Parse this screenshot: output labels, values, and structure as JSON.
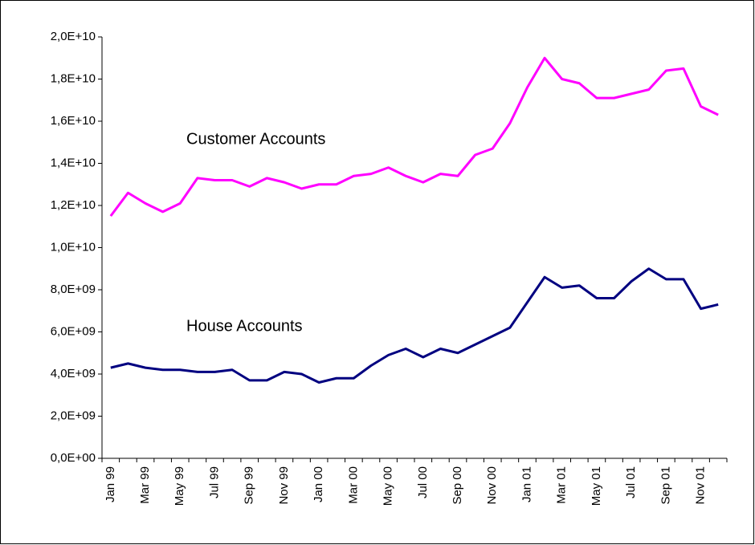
{
  "chart_data": {
    "type": "line",
    "categories": [
      "Jan 99",
      null,
      "Mar 99",
      null,
      "May 99",
      null,
      "Jul 99",
      null,
      "Sep 99",
      null,
      "Nov 99",
      null,
      "Jan 00",
      null,
      "Mar 00",
      null,
      "May 00",
      null,
      "Jul 00",
      null,
      "Sep 00",
      null,
      "Nov 00",
      null,
      "Jan 01",
      null,
      "Mar 01",
      null,
      "May 01",
      null,
      "Jul 01",
      null,
      "Sep 01",
      null,
      "Nov 01",
      null
    ],
    "series": [
      {
        "name": "Customer Accounts",
        "color": "#ff00ff",
        "values": [
          11500000000,
          12600000000,
          12100000000,
          11700000000,
          12100000000,
          13300000000,
          13200000000,
          13200000000,
          12900000000,
          13300000000,
          13100000000,
          12800000000,
          13000000000,
          13000000000,
          13400000000,
          13500000000,
          13800000000,
          13400000000,
          13100000000,
          13500000000,
          13400000000,
          14400000000,
          14700000000,
          15900000000,
          17600000000,
          19000000000,
          18000000000,
          17800000000,
          17100000000,
          17100000000,
          17300000000,
          17500000000,
          18400000000,
          18500000000,
          16700000000,
          16300000000
        ]
      },
      {
        "name": "House Accounts",
        "color": "#000080",
        "values": [
          4300000000,
          4500000000,
          4300000000,
          4200000000,
          4200000000,
          4100000000,
          4100000000,
          4200000000,
          3700000000,
          3700000000,
          4100000000,
          4000000000,
          3600000000,
          3800000000,
          3800000000,
          4400000000,
          4900000000,
          5200000000,
          4800000000,
          5200000000,
          5000000000,
          5400000000,
          5800000000,
          6200000000,
          7400000000,
          8600000000,
          8100000000,
          8200000000,
          7600000000,
          7600000000,
          8400000000,
          9000000000,
          8500000000,
          8500000000,
          7100000000,
          7300000000
        ]
      }
    ],
    "ylim": [
      0,
      20000000000
    ],
    "yticks": [
      {
        "value": 0,
        "label": "0,0E+00"
      },
      {
        "value": 2000000000,
        "label": "2,0E+09"
      },
      {
        "value": 4000000000,
        "label": "4,0E+09"
      },
      {
        "value": 6000000000,
        "label": "6,0E+09"
      },
      {
        "value": 8000000000,
        "label": "8,0E+09"
      },
      {
        "value": 10000000000,
        "label": "1,0E+10"
      },
      {
        "value": 12000000000,
        "label": "1,2E+10"
      },
      {
        "value": 14000000000,
        "label": "1,4E+10"
      },
      {
        "value": 16000000000,
        "label": "1,6E+10"
      },
      {
        "value": 18000000000,
        "label": "1,8E+10"
      },
      {
        "value": 20000000000,
        "label": "2,0E+10"
      }
    ]
  }
}
